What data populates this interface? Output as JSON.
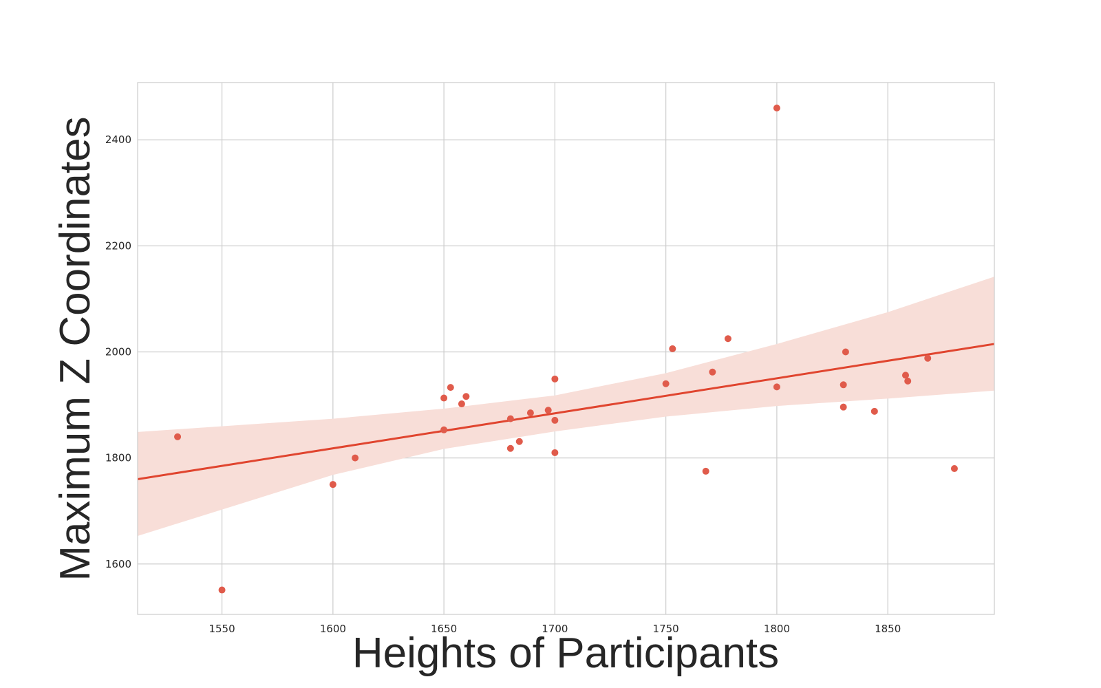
{
  "chart_data": {
    "type": "scatter",
    "title": "",
    "xlabel": "Heights of Participants",
    "ylabel": "Maximum Z Coordinates",
    "xlim": [
      1512,
      1898
    ],
    "ylim": [
      1505,
      2508
    ],
    "xticks": [
      1550,
      1600,
      1650,
      1700,
      1750,
      1800,
      1850
    ],
    "yticks": [
      1600,
      1800,
      2000,
      2200,
      2400
    ],
    "grid": true,
    "colors": {
      "points": "#e05b4b",
      "regression_line": "#e0452f",
      "confidence_band": "#f8ded8",
      "grid": "#cccccc",
      "frame": "#cccccc",
      "text": "#262626"
    },
    "points": [
      {
        "x": 1530,
        "y": 1840
      },
      {
        "x": 1550,
        "y": 1551
      },
      {
        "x": 1600,
        "y": 1750
      },
      {
        "x": 1610,
        "y": 1800
      },
      {
        "x": 1650,
        "y": 1913
      },
      {
        "x": 1650,
        "y": 1853
      },
      {
        "x": 1653,
        "y": 1933
      },
      {
        "x": 1658,
        "y": 1902
      },
      {
        "x": 1660,
        "y": 1916
      },
      {
        "x": 1680,
        "y": 1874
      },
      {
        "x": 1680,
        "y": 1818
      },
      {
        "x": 1684,
        "y": 1831
      },
      {
        "x": 1689,
        "y": 1885
      },
      {
        "x": 1697,
        "y": 1890
      },
      {
        "x": 1700,
        "y": 1949
      },
      {
        "x": 1700,
        "y": 1871
      },
      {
        "x": 1700,
        "y": 1810
      },
      {
        "x": 1750,
        "y": 1940
      },
      {
        "x": 1753,
        "y": 2006
      },
      {
        "x": 1768,
        "y": 1775
      },
      {
        "x": 1771,
        "y": 1962
      },
      {
        "x": 1778,
        "y": 2025
      },
      {
        "x": 1800,
        "y": 2460
      },
      {
        "x": 1800,
        "y": 1934
      },
      {
        "x": 1830,
        "y": 1938
      },
      {
        "x": 1830,
        "y": 1896
      },
      {
        "x": 1831,
        "y": 2000
      },
      {
        "x": 1844,
        "y": 1888
      },
      {
        "x": 1858,
        "y": 1956
      },
      {
        "x": 1859,
        "y": 1945
      },
      {
        "x": 1868,
        "y": 1988
      },
      {
        "x": 1880,
        "y": 1780
      }
    ],
    "regression_line": [
      {
        "x": 1512,
        "y": 1760
      },
      {
        "x": 1898,
        "y": 2015
      }
    ],
    "confidence_band": {
      "upper": [
        {
          "x": 1512,
          "y": 1849
        },
        {
          "x": 1600,
          "y": 1874
        },
        {
          "x": 1650,
          "y": 1893
        },
        {
          "x": 1700,
          "y": 1918
        },
        {
          "x": 1750,
          "y": 1960
        },
        {
          "x": 1800,
          "y": 2015
        },
        {
          "x": 1850,
          "y": 2075
        },
        {
          "x": 1898,
          "y": 2142
        }
      ],
      "lower": [
        {
          "x": 1512,
          "y": 1653
        },
        {
          "x": 1600,
          "y": 1768
        },
        {
          "x": 1650,
          "y": 1817
        },
        {
          "x": 1700,
          "y": 1850
        },
        {
          "x": 1750,
          "y": 1878
        },
        {
          "x": 1800,
          "y": 1898
        },
        {
          "x": 1850,
          "y": 1912
        },
        {
          "x": 1898,
          "y": 1927
        }
      ]
    }
  }
}
